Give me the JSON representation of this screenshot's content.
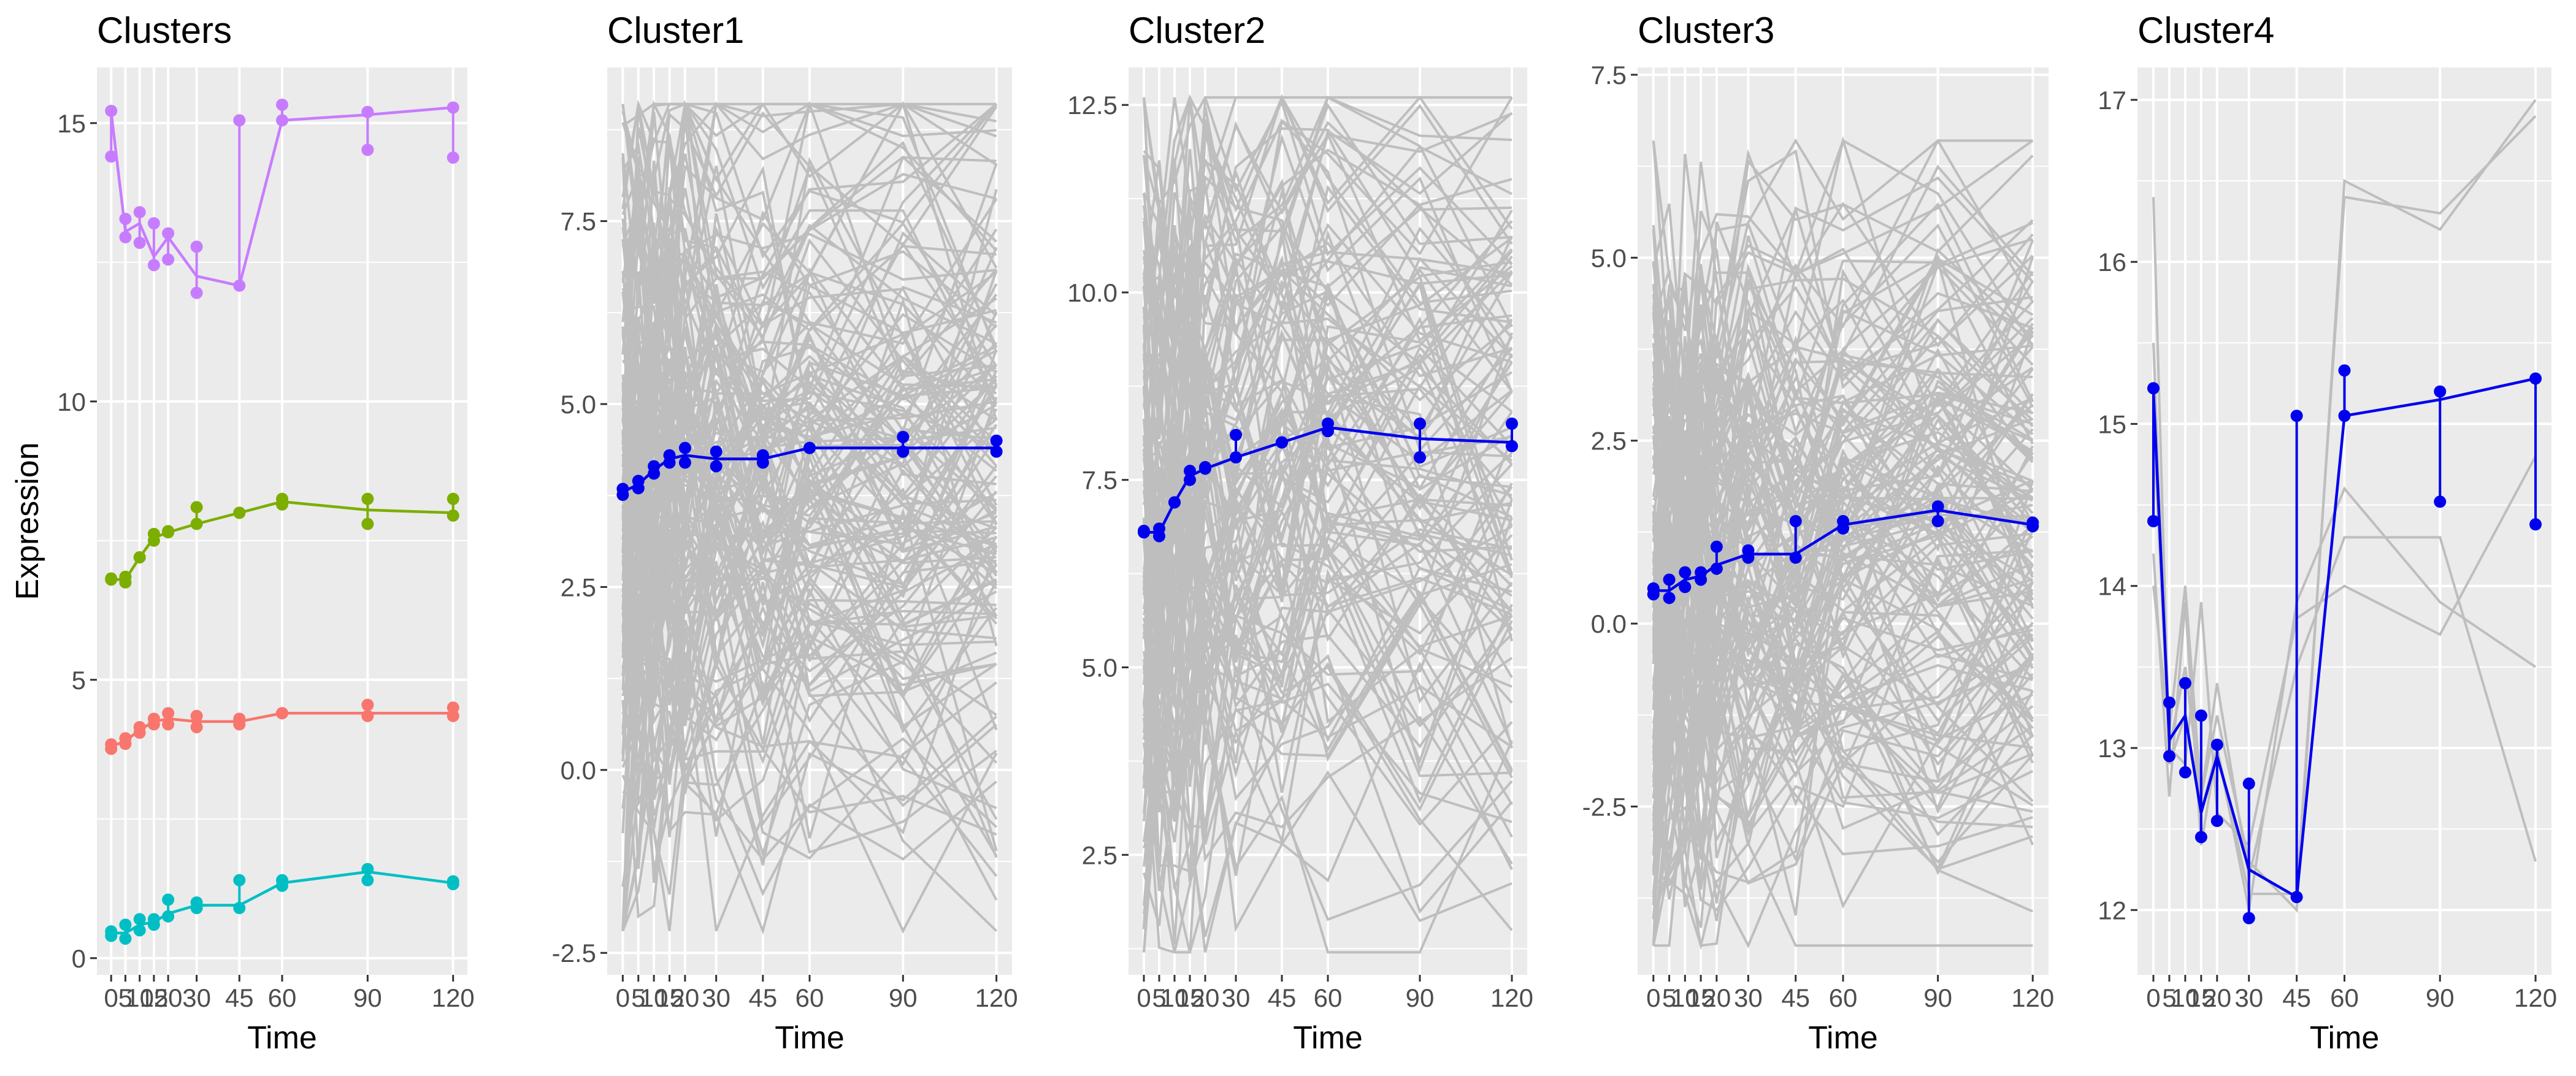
{
  "figure": {
    "y_axis_label": "Expression",
    "x_axis_label": "Time",
    "x_tick_labels": [
      "0",
      "5",
      "10",
      "15",
      "20",
      "30",
      "45",
      "60",
      "90",
      "120"
    ]
  },
  "colors": {
    "panel_background": "#EBEBEB",
    "grid": "#FFFFFF",
    "background_profiles": "#BEBEBE",
    "highlight": "#0000EE",
    "cluster1": "#F8766D",
    "cluster2": "#7CAE00",
    "cluster3": "#00BFC4",
    "cluster4": "#C77CFF"
  },
  "chart_data": [
    {
      "type": "line",
      "title": "Clusters",
      "xlabel": "Time",
      "ylabel": "Expression",
      "x": [
        0,
        5,
        10,
        15,
        20,
        30,
        45,
        60,
        90,
        120
      ],
      "xlim": [
        -5,
        125
      ],
      "ylim": [
        -0.3,
        16.0
      ],
      "yticks": [
        0,
        5,
        10,
        15
      ],
      "grid": true,
      "legend": "none",
      "series": [
        {
          "color": "#F8766D",
          "values": [
            3.8,
            3.9,
            4.1,
            4.25,
            4.3,
            4.25,
            4.25,
            4.4,
            4.4,
            4.4
          ],
          "replicates": [
            [
              3.76,
              3.84
            ],
            [
              3.85,
              3.95
            ],
            [
              4.05,
              4.15
            ],
            [
              4.2,
              4.3
            ],
            [
              4.2,
              4.4
            ],
            [
              4.15,
              4.35
            ],
            [
              4.2,
              4.3
            ],
            [
              4.4,
              4.4
            ],
            [
              4.35,
              4.55
            ],
            [
              4.35,
              4.5
            ]
          ]
        },
        {
          "color": "#7CAE00",
          "values": [
            6.8,
            6.8,
            7.2,
            7.55,
            7.65,
            7.8,
            8.0,
            8.2,
            8.05,
            8.0
          ],
          "replicates": [
            [
              6.8,
              6.82
            ],
            [
              6.75,
              6.85
            ],
            [
              7.2,
              7.2
            ],
            [
              7.5,
              7.62
            ],
            [
              7.65,
              7.67
            ],
            [
              7.8,
              8.1
            ],
            [
              8.0,
              8.0
            ],
            [
              8.15,
              8.25
            ],
            [
              7.8,
              8.25
            ],
            [
              7.95,
              8.25
            ]
          ]
        },
        {
          "color": "#00BFC4",
          "values": [
            0.45,
            0.45,
            0.6,
            0.65,
            0.8,
            0.95,
            0.95,
            1.35,
            1.55,
            1.35
          ],
          "replicates": [
            [
              0.4,
              0.48
            ],
            [
              0.35,
              0.6
            ],
            [
              0.5,
              0.7
            ],
            [
              0.6,
              0.7
            ],
            [
              0.75,
              1.05
            ],
            [
              0.9,
              1.0
            ],
            [
              0.9,
              1.4
            ],
            [
              1.3,
              1.4
            ],
            [
              1.4,
              1.6
            ],
            [
              1.33,
              1.38
            ]
          ]
        },
        {
          "color": "#C77CFF",
          "values": [
            15.2,
            13.05,
            13.2,
            12.6,
            12.95,
            12.25,
            12.08,
            15.05,
            15.15,
            15.28
          ],
          "replicates": [
            [
              14.4,
              15.22
            ],
            [
              12.95,
              13.28
            ],
            [
              12.85,
              13.4
            ],
            [
              12.45,
              13.2
            ],
            [
              12.55,
              13.02
            ],
            [
              11.95,
              12.78
            ],
            [
              12.08,
              15.05
            ],
            [
              15.05,
              15.33
            ],
            [
              14.52,
              15.2
            ],
            [
              14.38,
              15.28
            ]
          ]
        }
      ]
    },
    {
      "type": "line",
      "title": "Cluster1",
      "xlabel": "Time",
      "x": [
        0,
        5,
        10,
        15,
        20,
        30,
        45,
        60,
        90,
        120
      ],
      "xlim": [
        -5,
        125
      ],
      "ylim": [
        -2.8,
        9.6
      ],
      "yticks": [
        -2.5,
        0.0,
        2.5,
        5.0,
        7.5
      ],
      "ytick_labels": [
        "-2.5",
        "0.0",
        "2.5",
        "5.0",
        "7.5"
      ],
      "grid": true,
      "background_profiles": {
        "count": 150,
        "range": [
          -2.2,
          9.1
        ],
        "color": "#BEBEBE"
      },
      "highlight": {
        "color": "#0000EE",
        "values": [
          3.8,
          3.9,
          4.1,
          4.25,
          4.3,
          4.25,
          4.25,
          4.4,
          4.4,
          4.4
        ],
        "replicates": [
          [
            3.76,
            3.84
          ],
          [
            3.85,
            3.95
          ],
          [
            4.05,
            4.15
          ],
          [
            4.2,
            4.3
          ],
          [
            4.2,
            4.4
          ],
          [
            4.15,
            4.35
          ],
          [
            4.2,
            4.3
          ],
          [
            4.4,
            4.4
          ],
          [
            4.35,
            4.55
          ],
          [
            4.35,
            4.5
          ]
        ]
      }
    },
    {
      "type": "line",
      "title": "Cluster2",
      "xlabel": "Time",
      "x": [
        0,
        5,
        10,
        15,
        20,
        30,
        45,
        60,
        90,
        120
      ],
      "xlim": [
        -5,
        125
      ],
      "ylim": [
        0.9,
        13.0
      ],
      "yticks": [
        2.5,
        5.0,
        7.5,
        10.0,
        12.5
      ],
      "ytick_labels": [
        "2.5",
        "5.0",
        "7.5",
        "10.0",
        "12.5"
      ],
      "grid": true,
      "background_profiles": {
        "count": 120,
        "range": [
          1.2,
          12.6
        ],
        "color": "#BEBEBE"
      },
      "highlight": {
        "color": "#0000EE",
        "values": [
          6.8,
          6.8,
          7.2,
          7.55,
          7.65,
          7.8,
          8.0,
          8.2,
          8.05,
          8.0
        ],
        "replicates": [
          [
            6.8,
            6.82
          ],
          [
            6.75,
            6.85
          ],
          [
            7.2,
            7.2
          ],
          [
            7.5,
            7.62
          ],
          [
            7.65,
            7.67
          ],
          [
            7.8,
            8.1
          ],
          [
            8.0,
            8.0
          ],
          [
            8.15,
            8.25
          ],
          [
            7.8,
            8.25
          ],
          [
            7.95,
            8.25
          ]
        ]
      }
    },
    {
      "type": "line",
      "title": "Cluster3",
      "xlabel": "Time",
      "x": [
        0,
        5,
        10,
        15,
        20,
        30,
        45,
        60,
        90,
        120
      ],
      "xlim": [
        -5,
        125
      ],
      "ylim": [
        -4.8,
        7.6
      ],
      "yticks": [
        -2.5,
        0.0,
        2.5,
        5.0,
        7.5
      ],
      "ytick_labels": [
        "-2.5",
        "0.0",
        "2.5",
        "5.0",
        "7.5"
      ],
      "grid": true,
      "background_profiles": {
        "count": 150,
        "range": [
          -4.4,
          6.6
        ],
        "color": "#BEBEBE"
      },
      "highlight": {
        "color": "#0000EE",
        "values": [
          0.45,
          0.45,
          0.6,
          0.65,
          0.8,
          0.95,
          0.95,
          1.35,
          1.55,
          1.35
        ],
        "replicates": [
          [
            0.4,
            0.48
          ],
          [
            0.35,
            0.6
          ],
          [
            0.5,
            0.7
          ],
          [
            0.6,
            0.7
          ],
          [
            0.75,
            1.05
          ],
          [
            0.9,
            1.0
          ],
          [
            0.9,
            1.4
          ],
          [
            1.3,
            1.4
          ],
          [
            1.4,
            1.6
          ],
          [
            1.33,
            1.38
          ]
        ]
      }
    },
    {
      "type": "line",
      "title": "Cluster4",
      "xlabel": "Time",
      "x": [
        0,
        5,
        10,
        15,
        20,
        30,
        45,
        60,
        90,
        120
      ],
      "xlim": [
        -5,
        125
      ],
      "ylim": [
        11.6,
        17.2
      ],
      "yticks": [
        12,
        13,
        14,
        15,
        16,
        17
      ],
      "grid": true,
      "background_profiles": {
        "color": "#BEBEBE",
        "profiles": [
          [
            16.4,
            13.0,
            13.5,
            12.7,
            13.2,
            12.3,
            12.0,
            16.5,
            16.2,
            17.0
          ],
          [
            15.5,
            12.9,
            13.2,
            12.6,
            13.0,
            12.1,
            12.1,
            16.4,
            16.3,
            16.9
          ],
          [
            14.2,
            12.7,
            13.9,
            12.4,
            13.0,
            12.0,
            13.9,
            14.6,
            13.9,
            13.5
          ],
          [
            14.0,
            13.1,
            14.0,
            12.7,
            13.4,
            12.2,
            13.5,
            14.3,
            14.3,
            12.3
          ],
          [
            15.0,
            13.0,
            12.9,
            13.9,
            12.6,
            12.4,
            13.8,
            14.0,
            13.7,
            14.8
          ]
        ]
      },
      "highlight": {
        "color": "#0000EE",
        "values": [
          15.2,
          13.05,
          13.2,
          12.6,
          12.95,
          12.25,
          12.08,
          15.05,
          15.15,
          15.28
        ],
        "replicates": [
          [
            14.4,
            15.22
          ],
          [
            12.95,
            13.28
          ],
          [
            12.85,
            13.4
          ],
          [
            12.45,
            13.2
          ],
          [
            12.55,
            13.02
          ],
          [
            11.95,
            12.78
          ],
          [
            12.08,
            15.05
          ],
          [
            15.05,
            15.33
          ],
          [
            14.52,
            15.2
          ],
          [
            14.38,
            15.28
          ]
        ]
      }
    }
  ]
}
